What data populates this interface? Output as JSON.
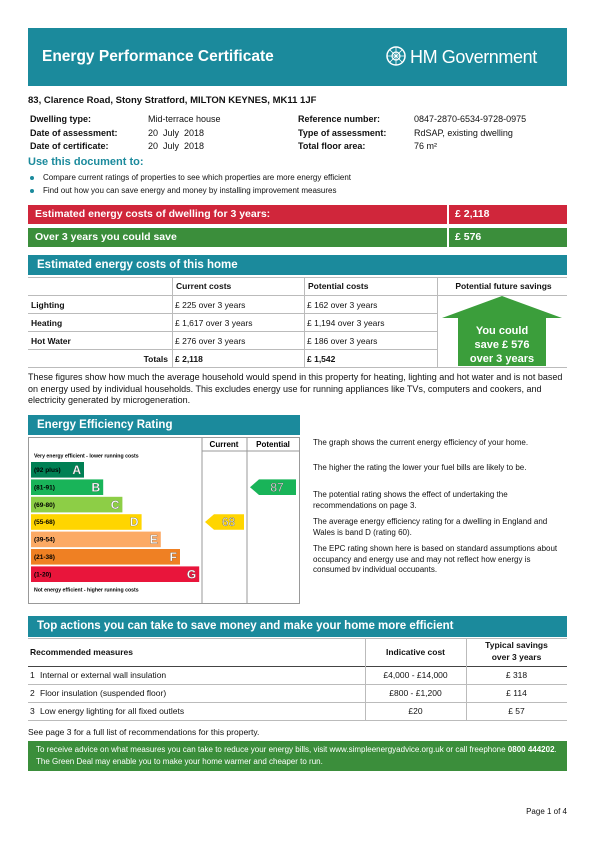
{
  "header": {
    "title": "Energy Performance Certificate",
    "brand": "HM Government"
  },
  "address": "83, Clarence Road, Stony Stratford, MILTON KEYNES, MK11 1JF",
  "details": {
    "left": [
      [
        "Dwelling type:",
        "Mid-terrace house"
      ],
      [
        "Date of assessment:",
        "20  July  2018"
      ],
      [
        "Date of certificate:",
        "20  July  2018"
      ]
    ],
    "right": [
      [
        "Reference number:",
        "0847-2870-6534-9728-0975"
      ],
      [
        "Type of assessment:",
        "RdSAP, existing dwelling"
      ],
      [
        "Total floor area:",
        "76 m²"
      ]
    ]
  },
  "use": {
    "heading": "Use this document to:",
    "bullets": [
      "Compare current ratings of properties to see which properties are more energy efficient",
      "Find out how you can save energy and money by installing improvement measures"
    ]
  },
  "summary": [
    {
      "label": "Estimated energy costs of dwelling for 3 years:",
      "value": "£ 2,118"
    },
    {
      "label": "Over 3 years you could save",
      "value": "£ 576"
    }
  ],
  "costs": {
    "heading": "Estimated energy costs of this home",
    "columns": [
      "Current costs",
      "Potential costs",
      "Potential future savings"
    ],
    "rows": [
      [
        "Lighting",
        "£ 225 over 3 years",
        "£ 162 over 3 years"
      ],
      [
        "Heating",
        "£ 1,617 over 3 years",
        "£ 1,194 over 3 years"
      ],
      [
        "Hot Water",
        "£ 276 over 3 years",
        "£ 186 over 3 years"
      ]
    ],
    "totals": [
      "Totals",
      "£ 2,118",
      "£ 1,542"
    ],
    "savings": [
      "You could",
      "save £ 576",
      "over 3 years"
    ],
    "note": "These figures show how much the average household would spend in this property for heating, lighting and hot water and is not based on energy used by individual households. This excludes energy use for running appliances like TVs, computers and cookers, and electricity generated by microgeneration."
  },
  "efficiency": {
    "heading": "Energy Efficiency Rating",
    "columns": [
      "Current",
      "Potential"
    ],
    "top": "Very energy efficient - lower running costs",
    "bottom": "Not energy efficient - higher running costs",
    "bands": [
      {
        "range": "(92 plus)",
        "letter": "A",
        "color": "#008054"
      },
      {
        "range": "(81-91)",
        "letter": "B",
        "color": "#19b459"
      },
      {
        "range": "(69-80)",
        "letter": "C",
        "color": "#8dce46"
      },
      {
        "range": "(55-68)",
        "letter": "D",
        "color": "#ffd500"
      },
      {
        "range": "(39-54)",
        "letter": "E",
        "color": "#fcaa65"
      },
      {
        "range": "(21-38)",
        "letter": "F",
        "color": "#ef8023"
      },
      {
        "range": "(1-20)",
        "letter": "G",
        "color": "#e9153b"
      }
    ],
    "current": 68,
    "potential": 87,
    "notes": [
      "The graph shows the current energy efficiency of your home.",
      "The higher the rating the lower your fuel bills are likely to be.",
      "The potential rating shows the effect of undertaking the recommendations on page 3.",
      "The average energy efficiency rating for a dwelling in England and Wales is band D (rating 60).",
      "The EPC rating shown here is based on standard assumptions about occupancy and energy use and may not reflect how energy is consumed by individual occupants."
    ]
  },
  "actions": {
    "heading": "Top actions you can take to save money and make your home more efficient",
    "columns": [
      "Recommended measures",
      "Indicative cost",
      "Typical savings over 3 years"
    ],
    "rows": [
      [
        "1",
        "Internal or external wall insulation",
        "£4,000 - £14,000",
        "£ 318"
      ],
      [
        "2",
        "Floor insulation (suspended floor)",
        "£800 - £1,200",
        "£ 114"
      ],
      [
        "3",
        "Low energy lighting for all fixed outlets",
        "£20",
        "£ 57"
      ]
    ]
  },
  "see_page": "See page 3 for a full list of recommendations for this property.",
  "advice": [
    "To receive advice on what measures you can take to reduce your energy bills, visit www.simpleenergyadvice.org.uk or call freephone ",
    "0800 444202",
    ". The Green Deal may enable you to make your home warmer and cheaper to run."
  ],
  "footer": "Page 1 of 4"
}
